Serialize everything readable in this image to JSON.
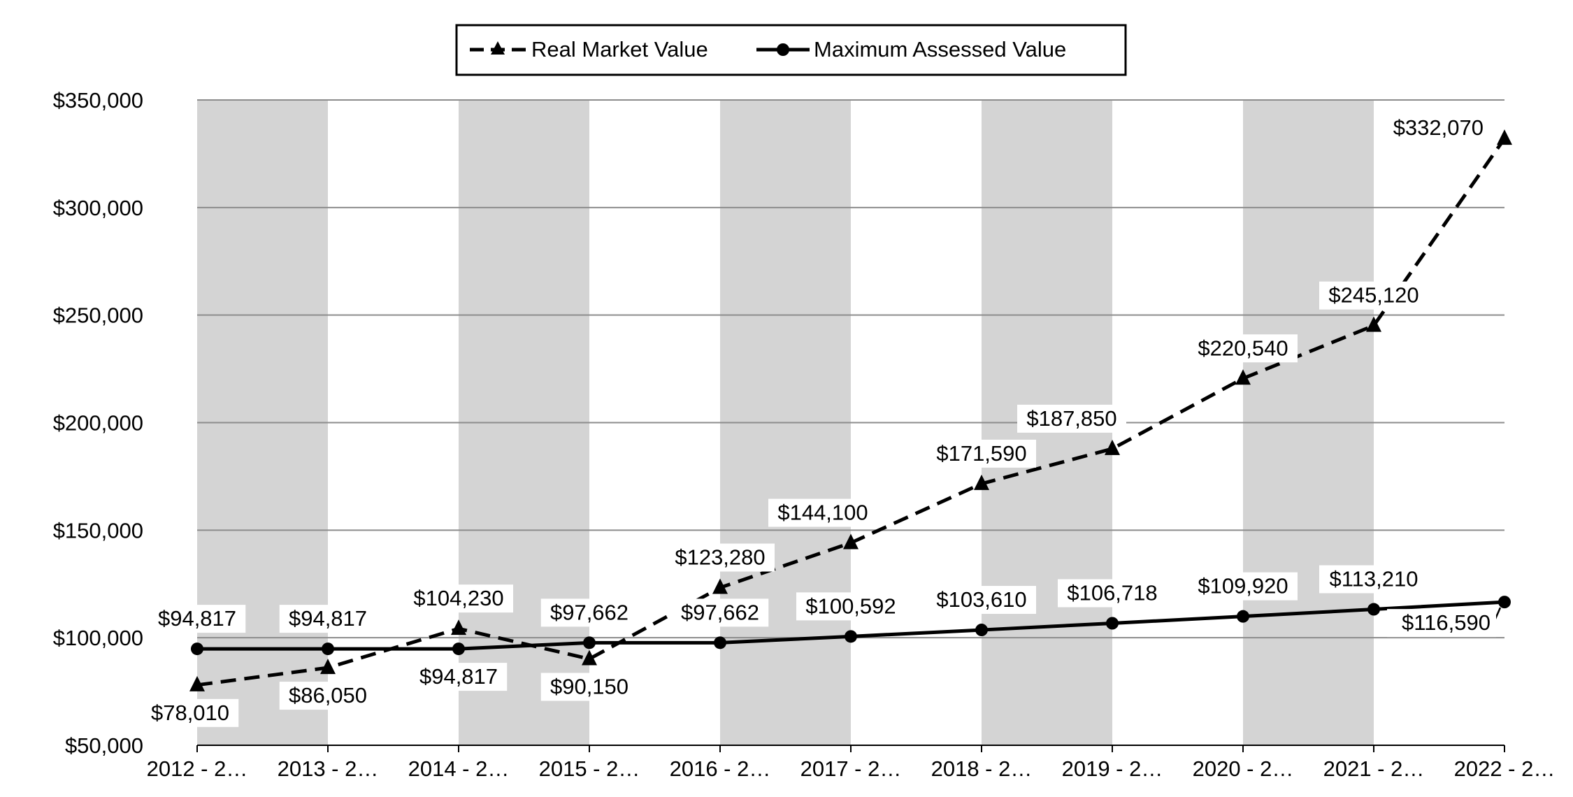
{
  "chart_data": {
    "type": "line",
    "title": "",
    "xlabel": "",
    "ylabel": "",
    "categories": [
      "2012 - 2…",
      "2013 - 2…",
      "2014 - 2…",
      "2015 - 2…",
      "2016 - 2…",
      "2017 - 2…",
      "2018 - 2…",
      "2019 - 2…",
      "2020 - 2…",
      "2021 - 2…",
      "2022 - 2…"
    ],
    "ylim": [
      50000,
      350000
    ],
    "yticks": [
      50000,
      100000,
      150000,
      200000,
      250000,
      300000,
      350000
    ],
    "ytick_labels": [
      "$50,000",
      "$100,000",
      "$150,000",
      "$200,000",
      "$250,000",
      "$300,000",
      "$350,000"
    ],
    "grid": true,
    "legend_position": "top-center",
    "series": [
      {
        "name": "Real Market Value",
        "style": "dashed",
        "marker": "triangle",
        "values": [
          78010,
          86050,
          104230,
          90150,
          123280,
          144100,
          171590,
          187850,
          220540,
          245120,
          332070
        ],
        "labels": [
          "$78,010",
          "$86,050",
          "$104,230",
          "$90,150",
          "$123,280",
          "$144,100",
          "$171,590",
          "$187,850",
          "$220,540",
          "$245,120",
          "$332,070"
        ]
      },
      {
        "name": "Maximum Assessed Value",
        "style": "solid",
        "marker": "circle",
        "values": [
          94817,
          94817,
          94817,
          97662,
          97662,
          100592,
          103610,
          106718,
          109920,
          113210,
          116590
        ],
        "labels": [
          "$94,817",
          "$94,817",
          "$94,817",
          "$97,662",
          "$97,662",
          "$100,592",
          "$103,610",
          "$106,718",
          "$109,920",
          "$113,210",
          "$116,590"
        ]
      }
    ],
    "colors": {
      "line": "#000000",
      "band": "#d4d4d4",
      "grid": "#8c8c8c",
      "background": "#ffffff"
    }
  }
}
